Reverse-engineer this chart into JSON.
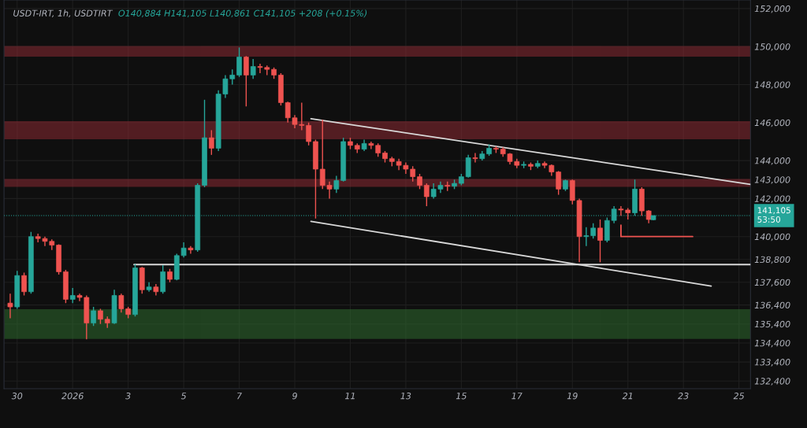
{
  "chart_data": {
    "type": "candlestick",
    "title": "USDT-IRT, 1h, USDTIRT",
    "subtitle": "O140,884 H141,105 L140,861 C141,105 +208 (+0.15%)",
    "xlim": [
      "2025-12-29T12:40",
      "2026-01-25T10:00"
    ],
    "xticks": [
      {
        "value": "2025-12-30",
        "label": "30"
      },
      {
        "value": "2026-01-01",
        "label": "2026"
      },
      {
        "value": "2026-01-03",
        "label": "3"
      },
      {
        "value": "2026-01-05",
        "label": "5"
      },
      {
        "value": "2026-01-07",
        "label": "7"
      },
      {
        "value": "2026-01-09",
        "label": "9"
      },
      {
        "value": "2026-01-11",
        "label": "11"
      },
      {
        "value": "2026-01-13",
        "label": "13"
      },
      {
        "value": "2026-01-15",
        "label": "15"
      },
      {
        "value": "2026-01-17",
        "label": "17"
      },
      {
        "value": "2026-01-19",
        "label": "19"
      },
      {
        "value": "2026-01-21",
        "label": "21"
      },
      {
        "value": "2026-01-23",
        "label": "23"
      },
      {
        "value": "2026-01-25",
        "label": "25"
      }
    ],
    "ylim": [
      132000,
      152450
    ],
    "yticks": [
      {
        "value": 132400,
        "label": "132,400"
      },
      {
        "value": 133400,
        "label": "133,400"
      },
      {
        "value": 134400,
        "label": "134,400"
      },
      {
        "value": 135400,
        "label": "135,400"
      },
      {
        "value": 136400,
        "label": "136,400"
      },
      {
        "value": 137600,
        "label": "137,600"
      },
      {
        "value": 138800,
        "label": "138,800"
      },
      {
        "value": 140000,
        "label": "140,000"
      },
      {
        "value": 142000,
        "label": "142,000"
      },
      {
        "value": 143000,
        "label": "143,000"
      },
      {
        "value": 144000,
        "label": "144,000"
      },
      {
        "value": 146000,
        "label": "146,000"
      },
      {
        "value": 148000,
        "label": "148,000"
      },
      {
        "value": 150000,
        "label": "150,000"
      },
      {
        "value": 152000,
        "label": "152,000"
      }
    ],
    "grid": true,
    "legend": false,
    "bands": [
      {
        "axis": "y",
        "from": 149500,
        "to": 150000,
        "color": "#8b2a33"
      },
      {
        "axis": "y",
        "from": 145150,
        "to": 146050,
        "color": "#8b2a33"
      },
      {
        "axis": "y",
        "from": 142650,
        "to": 143000,
        "color": "#8b2a33"
      },
      {
        "axis": "y",
        "from": 134650,
        "to": 136150,
        "color": "#2f6b2f"
      }
    ],
    "ref_lines": [
      {
        "axis": "y",
        "value": 141105,
        "label": "141,105\n53:50",
        "color": "#26a69a",
        "line_style": "dotted"
      }
    ],
    "series": [
      {
        "x": [
          "2025-12-29T18:00",
          "2025-12-30T00:00",
          "2025-12-30T06:00",
          "2025-12-30T12:00",
          "2025-12-30T18:00",
          "2025-12-31T00:00",
          "2025-12-31T06:00",
          "2025-12-31T12:00",
          "2025-12-31T18:00",
          "2026-01-01T00:00",
          "2026-01-01T06:00",
          "2026-01-01T12:00",
          "2026-01-01T18:00",
          "2026-01-02T00:00",
          "2026-01-02T06:00",
          "2026-01-02T12:00",
          "2026-01-02T18:00",
          "2026-01-03T00:00",
          "2026-01-03T06:00",
          "2026-01-03T12:00",
          "2026-01-03T18:00",
          "2026-01-04T00:00",
          "2026-01-04T06:00",
          "2026-01-04T12:00",
          "2026-01-04T18:00",
          "2026-01-05T00:00",
          "2026-01-05T06:00",
          "2026-01-05T12:00",
          "2026-01-05T18:00",
          "2026-01-06T00:00",
          "2026-01-06T06:00",
          "2026-01-06T12:00",
          "2026-01-06T18:00",
          "2026-01-07T00:00",
          "2026-01-07T06:00",
          "2026-01-07T12:00",
          "2026-01-07T18:00",
          "2026-01-08T00:00",
          "2026-01-08T06:00",
          "2026-01-08T12:00",
          "2026-01-08T18:00",
          "2026-01-09T00:00",
          "2026-01-09T06:00",
          "2026-01-09T12:00",
          "2026-01-09T18:00",
          "2026-01-10T00:00",
          "2026-01-10T06:00",
          "2026-01-10T12:00",
          "2026-01-10T18:00",
          "2026-01-11T00:00",
          "2026-01-11T06:00",
          "2026-01-11T12:00",
          "2026-01-11T18:00",
          "2026-01-12T00:00",
          "2026-01-12T06:00",
          "2026-01-12T12:00",
          "2026-01-12T18:00",
          "2026-01-13T00:00",
          "2026-01-13T06:00",
          "2026-01-13T12:00",
          "2026-01-13T18:00",
          "2026-01-14T00:00",
          "2026-01-14T06:00",
          "2026-01-14T12:00",
          "2026-01-14T18:00",
          "2026-01-15T00:00",
          "2026-01-15T06:00",
          "2026-01-15T12:00",
          "2026-01-15T18:00",
          "2026-01-16T00:00",
          "2026-01-16T06:00",
          "2026-01-16T12:00",
          "2026-01-16T18:00",
          "2026-01-17T00:00",
          "2026-01-17T06:00",
          "2026-01-17T12:00",
          "2026-01-17T18:00",
          "2026-01-18T00:00",
          "2026-01-18T06:00",
          "2026-01-18T12:00",
          "2026-01-18T18:00",
          "2026-01-19T00:00",
          "2026-01-19T06:00",
          "2026-01-19T12:00",
          "2026-01-19T18:00",
          "2026-01-20T00:00",
          "2026-01-20T06:00",
          "2026-01-20T12:00",
          "2026-01-20T18:00",
          "2026-01-21T00:00",
          "2026-01-21T06:00",
          "2026-01-21T12:00",
          "2026-01-21T18:00",
          "2026-01-21T22:00"
        ],
        "ohlc": [
          [
            136500,
            137000,
            135700,
            136300
          ],
          [
            136300,
            138200,
            136200,
            137950
          ],
          [
            137950,
            138100,
            136900,
            137100
          ],
          [
            137100,
            140250,
            137000,
            140000
          ],
          [
            140000,
            140150,
            139700,
            139900
          ],
          [
            139900,
            140000,
            139500,
            139750
          ],
          [
            139750,
            139850,
            139300,
            139550
          ],
          [
            139550,
            139600,
            138000,
            138150
          ],
          [
            138150,
            138250,
            136500,
            136700
          ],
          [
            136700,
            137300,
            136500,
            136900
          ],
          [
            136900,
            137000,
            136600,
            136800
          ],
          [
            136800,
            136900,
            134600,
            135450
          ],
          [
            135450,
            136300,
            135300,
            136100
          ],
          [
            136100,
            136200,
            135400,
            135650
          ],
          [
            135650,
            135800,
            135200,
            135450
          ],
          [
            135450,
            137200,
            135400,
            136900
          ],
          [
            136900,
            137000,
            136000,
            136200
          ],
          [
            136200,
            136300,
            135700,
            135900
          ],
          [
            135900,
            138550,
            135800,
            138350
          ],
          [
            138350,
            138400,
            137000,
            137200
          ],
          [
            137200,
            137600,
            137100,
            137350
          ],
          [
            137350,
            137500,
            136900,
            137100
          ],
          [
            137100,
            138500,
            137000,
            138150
          ],
          [
            138150,
            138300,
            137600,
            137750
          ],
          [
            137750,
            139100,
            137700,
            139000
          ],
          [
            139000,
            139700,
            138900,
            139400
          ],
          [
            139400,
            139500,
            139100,
            139300
          ],
          [
            139300,
            142800,
            139200,
            142700
          ],
          [
            142700,
            147200,
            142600,
            145200
          ],
          [
            145200,
            145600,
            144300,
            144650
          ],
          [
            144650,
            147700,
            144500,
            147500
          ],
          [
            147500,
            148500,
            147300,
            148300
          ],
          [
            148300,
            148800,
            148000,
            148500
          ],
          [
            148500,
            149950,
            148400,
            149450
          ],
          [
            149450,
            149500,
            146850,
            148500
          ],
          [
            148500,
            149350,
            148300,
            148950
          ],
          [
            148950,
            149100,
            148600,
            148900
          ],
          [
            148900,
            149000,
            148500,
            148800
          ],
          [
            148800,
            148900,
            148300,
            148500
          ],
          [
            148500,
            148600,
            146900,
            147050
          ],
          [
            147050,
            147100,
            146000,
            146250
          ],
          [
            146250,
            146400,
            145700,
            145900
          ],
          [
            145900,
            147050,
            145600,
            145850
          ],
          [
            145850,
            146000,
            144800,
            145000
          ],
          [
            145000,
            145100,
            140950,
            143550
          ],
          [
            143550,
            146150,
            142500,
            142700
          ],
          [
            142700,
            142900,
            142000,
            142500
          ],
          [
            142500,
            143200,
            142300,
            142950
          ],
          [
            142950,
            145200,
            142900,
            145000
          ],
          [
            145000,
            145200,
            144600,
            144800
          ],
          [
            144800,
            144900,
            144400,
            144600
          ],
          [
            144600,
            145100,
            144500,
            144900
          ],
          [
            144900,
            145000,
            144600,
            144800
          ],
          [
            144800,
            144900,
            144200,
            144400
          ],
          [
            144400,
            144500,
            143900,
            144100
          ],
          [
            144100,
            144200,
            143700,
            143950
          ],
          [
            143950,
            144100,
            143500,
            143750
          ],
          [
            143750,
            143900,
            143300,
            143550
          ],
          [
            143550,
            143700,
            142900,
            143150
          ],
          [
            143150,
            143300,
            142500,
            142700
          ],
          [
            142700,
            142800,
            141600,
            142100
          ],
          [
            142100,
            142800,
            142000,
            142500
          ],
          [
            142500,
            142900,
            142300,
            142700
          ],
          [
            142700,
            142900,
            142400,
            142650
          ],
          [
            142650,
            143000,
            142500,
            142800
          ],
          [
            142800,
            143300,
            142700,
            143150
          ],
          [
            143150,
            144300,
            143100,
            144150
          ],
          [
            144150,
            144400,
            143900,
            144100
          ],
          [
            144100,
            144500,
            144000,
            144350
          ],
          [
            144350,
            144850,
            144250,
            144650
          ],
          [
            144650,
            144750,
            144400,
            144600
          ],
          [
            144600,
            144700,
            144200,
            144350
          ],
          [
            144350,
            144400,
            143800,
            143950
          ],
          [
            143950,
            144100,
            143600,
            143750
          ],
          [
            143750,
            143950,
            143600,
            143800
          ],
          [
            143800,
            143900,
            143500,
            143700
          ],
          [
            143700,
            144000,
            143600,
            143850
          ],
          [
            143850,
            143950,
            143600,
            143750
          ],
          [
            143750,
            143800,
            143200,
            143400
          ],
          [
            143400,
            143450,
            142200,
            142500
          ],
          [
            142500,
            143000,
            142400,
            142950
          ],
          [
            142950,
            143000,
            141700,
            141900
          ],
          [
            141900,
            142000,
            138650,
            140000
          ],
          [
            140000,
            140500,
            139500,
            140050
          ],
          [
            140050,
            140700,
            139900,
            140450
          ],
          [
            140450,
            140900,
            138650,
            139800
          ],
          [
            139800,
            141000,
            139700,
            140850
          ],
          [
            140850,
            141600,
            140700,
            141450
          ],
          [
            141450,
            141600,
            141100,
            141400
          ],
          [
            141400,
            141500,
            140900,
            141250
          ],
          [
            141250,
            143000,
            141100,
            142500
          ],
          [
            142500,
            142600,
            141100,
            141350
          ],
          [
            141350,
            141400,
            140700,
            140900
          ],
          [
            140884,
            141105,
            140861,
            141105
          ]
        ],
        "colors": [
          "#ef5350",
          "#26a69a",
          "#ef5350",
          "#26a69a",
          "#ef5350",
          "#ef5350",
          "#ef5350",
          "#ef5350",
          "#ef5350",
          "#26a69a",
          "#ef5350",
          "#ef5350",
          "#26a69a",
          "#ef5350",
          "#ef5350",
          "#26a69a",
          "#ef5350",
          "#ef5350",
          "#26a69a",
          "#ef5350",
          "#26a69a",
          "#ef5350",
          "#26a69a",
          "#ef5350",
          "#26a69a",
          "#26a69a",
          "#ef5350",
          "#26a69a",
          "#26a69a",
          "#ef5350",
          "#26a69a",
          "#26a69a",
          "#26a69a",
          "#26a69a",
          "#ef5350",
          "#26a69a",
          "#ef5350",
          "#ef5350",
          "#ef5350",
          "#ef5350",
          "#ef5350",
          "#ef5350",
          "#ef5350",
          "#ef5350",
          "#ef5350",
          "#ef5350",
          "#ef5350",
          "#26a69a",
          "#26a69a",
          "#ef5350",
          "#ef5350",
          "#26a69a",
          "#ef5350",
          "#ef5350",
          "#ef5350",
          "#ef5350",
          "#ef5350",
          "#ef5350",
          "#ef5350",
          "#ef5350",
          "#ef5350",
          "#26a69a",
          "#26a69a",
          "#ef5350",
          "#26a69a",
          "#26a69a",
          "#26a69a",
          "#ef5350",
          "#26a69a",
          "#26a69a",
          "#ef5350",
          "#ef5350",
          "#ef5350",
          "#ef5350",
          "#26a69a",
          "#ef5350",
          "#26a69a",
          "#ef5350",
          "#ef5350",
          "#ef5350",
          "#26a69a",
          "#ef5350",
          "#ef5350",
          "#26a69a",
          "#26a69a",
          "#ef5350",
          "#26a69a",
          "#26a69a",
          "#ef5350",
          "#ef5350",
          "#26a69a",
          "#ef5350",
          "#ef5350",
          "#26a69a"
        ]
      },
      {
        "type": "line",
        "color": "#d9d9d9",
        "x": [
          "2026-01-09T14:00",
          "2026-01-25T10:00"
        ],
        "values": [
          146200,
          142750
        ]
      },
      {
        "type": "line",
        "color": "#d9d9d9",
        "x": [
          "2026-01-09T14:00",
          "2026-01-24T00:00"
        ],
        "values": [
          140800,
          137400
        ]
      },
      {
        "type": "line",
        "color": "#d9d9d9",
        "x": [
          "2026-01-03T05:00",
          "2026-01-25T10:00"
        ],
        "values": [
          138530,
          138530
        ]
      },
      {
        "type": "line",
        "color": "#ef5350",
        "x": [
          "2026-01-20T18:00",
          "2026-01-20T18:00",
          "2026-01-23T08:00"
        ],
        "values": [
          140600,
          140000,
          140000
        ]
      }
    ]
  }
}
